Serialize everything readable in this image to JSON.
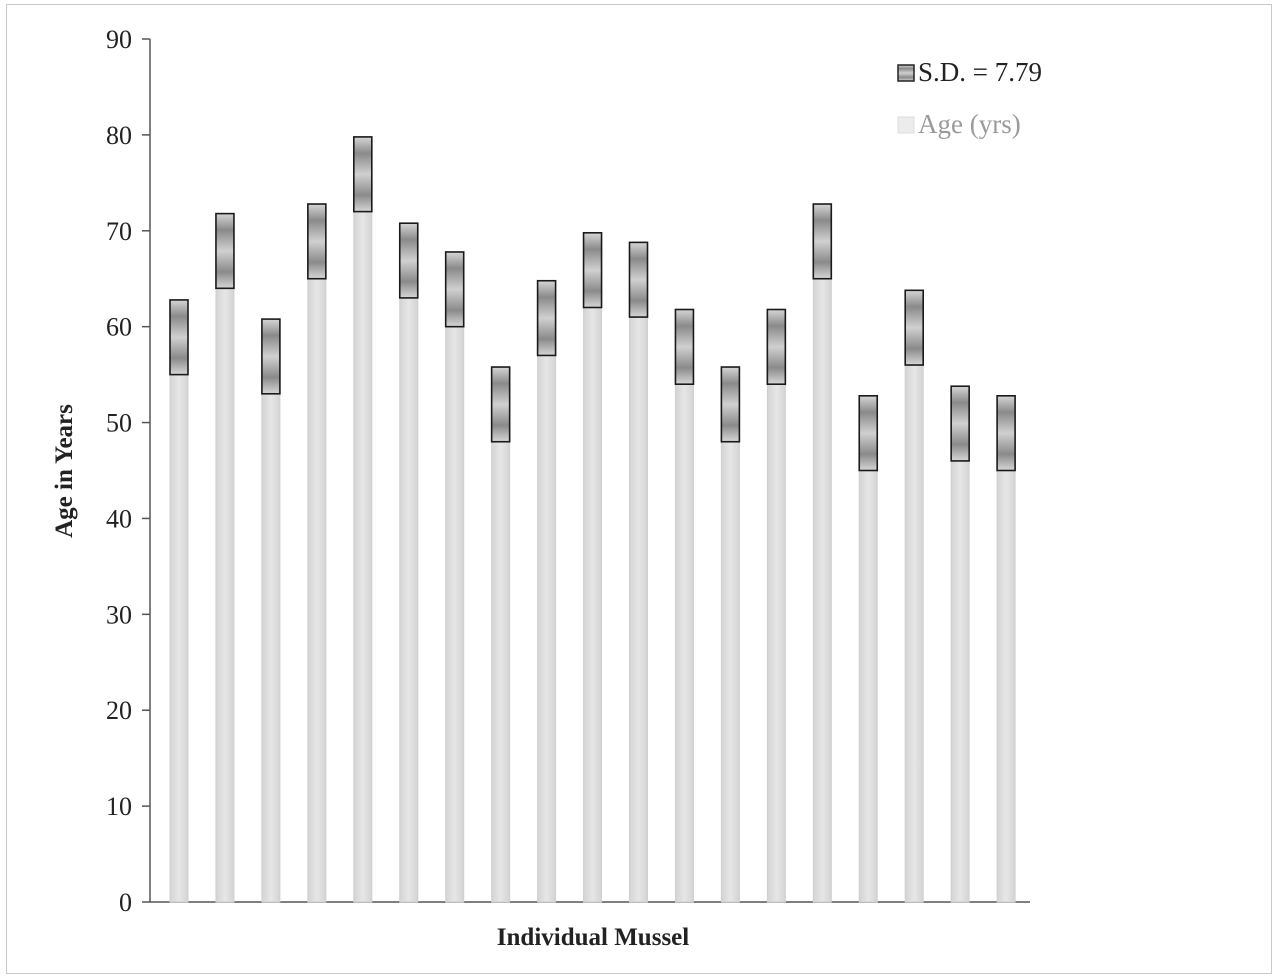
{
  "chart_data": {
    "type": "bar",
    "stacked": true,
    "title": "",
    "xlabel": "Individual Mussel",
    "ylabel": "Age in Years",
    "ylim": [
      0,
      90
    ],
    "yticks": [
      0,
      10,
      20,
      30,
      40,
      50,
      60,
      70,
      80,
      90
    ],
    "grid": false,
    "legend_position": "top-right",
    "series": [
      {
        "name": "Age (yrs)",
        "color": "#e2e2e2",
        "values": [
          55,
          64,
          53,
          65,
          72,
          63,
          60,
          48,
          57,
          62,
          61,
          54,
          48,
          54,
          65,
          45,
          56,
          46,
          45
        ]
      },
      {
        "name": "S.D. = 7.79",
        "color": "#9a9a9a",
        "values": [
          7.79,
          7.79,
          7.79,
          7.79,
          7.79,
          7.79,
          7.79,
          7.79,
          7.79,
          7.79,
          7.79,
          7.79,
          7.79,
          7.79,
          7.79,
          7.79,
          7.79,
          7.79,
          7.79
        ]
      }
    ]
  }
}
